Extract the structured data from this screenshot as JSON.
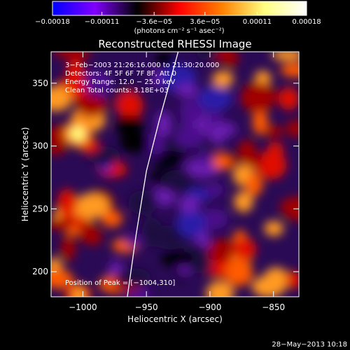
{
  "chart_data": {
    "type": "heatmap",
    "title": "Reconstructed RHESSI Image",
    "xlabel": "Heliocentric X (arcsec)",
    "ylabel": "Heliocentric Y (arcsec)",
    "xlim": [
      -1025,
      -830
    ],
    "ylim": [
      180,
      375
    ],
    "x_ticks": [
      -1000,
      -950,
      -900,
      -850
    ],
    "x_tick_labels": [
      "−1000",
      "−950",
      "−900",
      "−850"
    ],
    "y_ticks": [
      200,
      250,
      300,
      350
    ],
    "y_tick_labels": [
      "200",
      "250",
      "300",
      "350"
    ],
    "colorbar": {
      "range": [
        -0.00018,
        0.00018
      ],
      "ticks": [
        -0.00018,
        -0.00011,
        -3.6e-05,
        3.6e-05,
        0.00011,
        0.00018
      ],
      "tick_labels": [
        "−0.00018",
        "−0.00011",
        "−3.6e−05",
        "3.6e−05",
        "0.00011",
        "0.00018"
      ],
      "unit_label": "(photons cm⁻² s⁻¹ asec⁻²)",
      "colors": [
        "#0000ff",
        "#8000ff",
        "#000000",
        "#ff0000",
        "#ff8000",
        "#ffff80",
        "#ffffff"
      ]
    },
    "annotations": [
      "3−Feb−2003 21:26:16.000 to 21:30:20.000",
      "Detectors: 4F 5F 6F 7F 8F, Att 0",
      "Energy Range: 12.0 − 25.0 keV",
      "Clean     Total counts: 3.18E+03"
    ],
    "peak_label": "Position of Peak = [−1004,310]",
    "peak_position": [
      -1004,
      310
    ],
    "limb_curve": [
      [
        -965,
        180
      ],
      [
        -958,
        230
      ],
      [
        -950,
        280
      ],
      [
        -940,
        320
      ],
      [
        -925,
        375
      ]
    ],
    "timestamp": "28−May−2013 10:18"
  }
}
